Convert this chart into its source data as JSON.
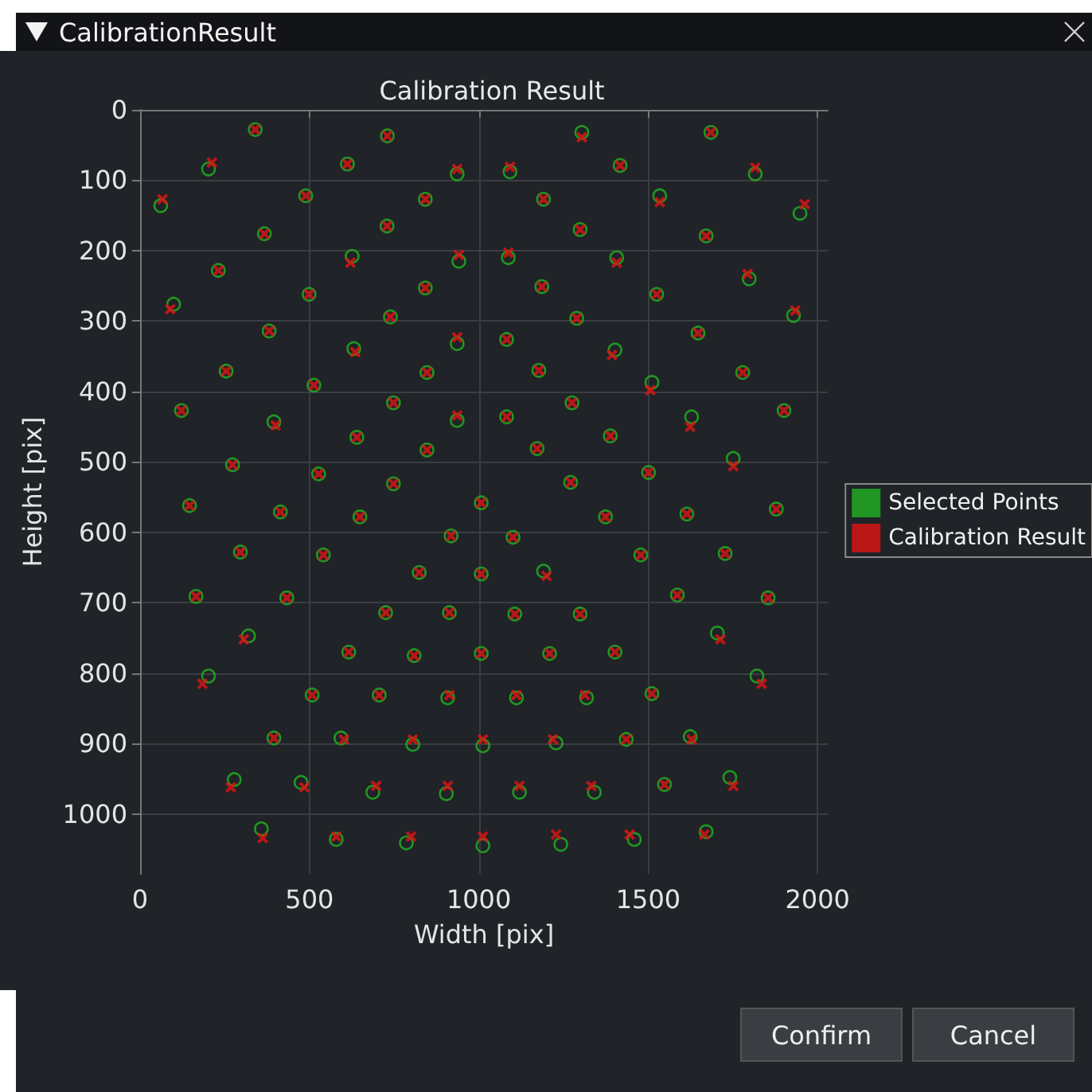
{
  "chart_data": {
    "type": "scatter",
    "title": "Calibration Result",
    "xlabel": "Width [pix]",
    "ylabel": "Height [pix]",
    "annotations": [
      "CalibrationResult",
      "Confirm",
      "Cancel"
    ],
    "xlim": [
      0,
      2030
    ],
    "ylim": [
      1085,
      0
    ],
    "xticks": [
      0,
      500,
      1000,
      1500,
      2000
    ],
    "yticks": [
      0,
      100,
      200,
      300,
      400,
      500,
      600,
      700,
      800,
      900,
      1000
    ],
    "grid": true,
    "legend": "right",
    "series": [
      {
        "name": "Selected Points",
        "color": "#22b322",
        "marker": "circle",
        "x": [
          340,
          730,
          202,
          612,
          936,
          61,
          489,
          842,
          729,
          367,
          626,
          941,
          231,
          842,
          99,
          499,
          739,
          381,
          631,
          936,
          254,
          847,
          513,
          748,
          122,
          395,
          936,
          640,
          847,
          273,
          527,
          748,
          1304,
          1685,
          1092,
          1417,
          1816,
          1191,
          1534,
          1948,
          1299,
          1671,
          1087,
          1407,
          1798,
          1186,
          1525,
          1289,
          1929,
          1082,
          1647,
          1402,
          1177,
          1779,
          1511,
          1275,
          1082,
          1628,
          1901,
          1388,
          1172,
          1751,
          1271,
          1501,
          146,
          414,
          649,
          1007,
          296,
          541,
          918,
          824,
          1007,
          165,
          433,
          725,
          913,
          320,
          616,
          809,
          1007,
          202,
          508,
          706,
          908,
          395,
          593,
          805,
          1012,
          278,
          475,
          687,
          904,
          358,
          579,
          786,
          1012,
          1374,
          1614,
          1878,
          1101,
          1478,
          1727,
          1191,
          1586,
          1854,
          1106,
          1299,
          1704,
          1209,
          1402,
          1821,
          1111,
          1318,
          1511,
          1228,
          1435,
          1624,
          1120,
          1341,
          1548,
          1741,
          1242,
          1459,
          1671
        ],
        "values": [
          28,
          37,
          84,
          77,
          91,
          136,
          122,
          127,
          165,
          176,
          208,
          215,
          228,
          253,
          276,
          262,
          294,
          314,
          339,
          332,
          371,
          373,
          391,
          416,
          427,
          443,
          441,
          465,
          483,
          504,
          517,
          531,
          32,
          32,
          88,
          79,
          91,
          127,
          122,
          147,
          170,
          179,
          210,
          210,
          240,
          251,
          262,
          296,
          292,
          326,
          317,
          341,
          370,
          373,
          387,
          416,
          436,
          436,
          427,
          463,
          481,
          495,
          529,
          515,
          562,
          571,
          578,
          558,
          628,
          632,
          605,
          657,
          659,
          691,
          693,
          714,
          714,
          747,
          770,
          775,
          772,
          804,
          831,
          831,
          835,
          892,
          892,
          901,
          903,
          951,
          955,
          969,
          971,
          1021,
          1036,
          1041,
          1045,
          578,
          574,
          567,
          607,
          632,
          630,
          655,
          689,
          693,
          716,
          716,
          743,
          772,
          770,
          804,
          835,
          835,
          829,
          899,
          894,
          890,
          969,
          969,
          958,
          948,
          1043,
          1036,
          1025
        ]
      },
      {
        "name": "Calibration Result",
        "color": "#e01414",
        "marker": "cross",
        "x": [
          340,
          730,
          212,
          612,
          936,
          66,
          489,
          842,
          729,
          367,
          621,
          941,
          231,
          842,
          89,
          499,
          739,
          381,
          635,
          936,
          254,
          847,
          513,
          748,
          122,
          400,
          936,
          640,
          847,
          273,
          527,
          748,
          1304,
          1685,
          1092,
          1417,
          1816,
          1191,
          1534,
          1962,
          1299,
          1671,
          1087,
          1407,
          1793,
          1186,
          1525,
          1289,
          1934,
          1082,
          1647,
          1393,
          1177,
          1779,
          1506,
          1275,
          1082,
          1624,
          1901,
          1388,
          1172,
          1751,
          1271,
          1501,
          146,
          414,
          649,
          1007,
          296,
          541,
          918,
          824,
          1007,
          165,
          433,
          725,
          913,
          306,
          616,
          809,
          1007,
          184,
          508,
          706,
          913,
          395,
          602,
          805,
          1012,
          268,
          485,
          697,
          908,
          362,
          579,
          800,
          1012,
          1374,
          1614,
          1878,
          1101,
          1478,
          1727,
          1200,
          1586,
          1854,
          1106,
          1299,
          1713,
          1209,
          1402,
          1835,
          1111,
          1313,
          1511,
          1219,
          1435,
          1628,
          1120,
          1332,
          1548,
          1751,
          1228,
          1445,
          1666
        ],
        "values": [
          28,
          37,
          75,
          77,
          84,
          127,
          122,
          127,
          165,
          176,
          217,
          206,
          228,
          253,
          283,
          262,
          294,
          314,
          344,
          323,
          371,
          373,
          391,
          416,
          427,
          448,
          434,
          465,
          483,
          504,
          517,
          531,
          39,
          32,
          81,
          79,
          82,
          127,
          131,
          134,
          170,
          179,
          203,
          217,
          233,
          251,
          262,
          296,
          285,
          326,
          317,
          348,
          370,
          373,
          398,
          416,
          436,
          450,
          427,
          463,
          481,
          506,
          529,
          515,
          562,
          571,
          578,
          558,
          628,
          632,
          605,
          657,
          659,
          691,
          693,
          714,
          714,
          752,
          770,
          775,
          772,
          815,
          831,
          831,
          831,
          892,
          894,
          894,
          894,
          962,
          962,
          960,
          960,
          1034,
          1032,
          1032,
          1032,
          578,
          574,
          567,
          607,
          632,
          630,
          662,
          689,
          693,
          716,
          716,
          752,
          772,
          770,
          815,
          831,
          831,
          829,
          894,
          894,
          894,
          960,
          960,
          958,
          960,
          1029,
          1029,
          1029
        ]
      }
    ]
  }
}
